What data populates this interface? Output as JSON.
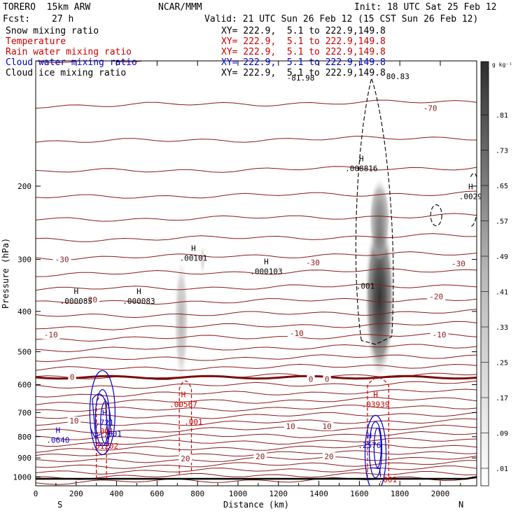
{
  "header": {
    "model": "TORERO  15km ARW",
    "org": "NCAR/MMM",
    "init": "Init: 18 UTC Sat 25 Feb 12",
    "fcst_label": "Fcst:",
    "fcst_value": "27 h",
    "valid": "Valid: 21 UTC Sun 26 Feb 12 (15 CST Sun 26 Feb 12)"
  },
  "legend": [
    {
      "name": "Snow mixing ratio",
      "xy": "XY= 222.9,  5.1 to 222.9,149.8",
      "color": "#000000"
    },
    {
      "name": "Temperature",
      "xy": "XY= 222.9,  5.1 to 222.9,149.8",
      "color": "#cc0000"
    },
    {
      "name": "Rain water mixing ratio",
      "xy": "XY= 222.9,  5.1 to 222.9,149.8",
      "color": "#cc0000"
    },
    {
      "name": "Cloud water mixing ratio",
      "xy": "XY= 222.9,  5.1 to 222.9,149.8",
      "color": "#0000cc"
    },
    {
      "name": "Cloud ice mixing ratio",
      "xy": "XY= 222.9,  5.1 to 222.9,149.8",
      "color": "#000000"
    }
  ],
  "chart_data": {
    "type": "cross-section",
    "xlabel": "Distance (km)",
    "ylabel": "Pressure (hPa)",
    "xlim": [
      0,
      2180
    ],
    "ylim": [
      1050,
      100
    ],
    "y_scale": "log",
    "x_ticks": [
      0,
      200,
      400,
      600,
      800,
      1000,
      1200,
      1400,
      1600,
      1800,
      2000
    ],
    "y_ticks": [
      200,
      300,
      400,
      500,
      600,
      700,
      800,
      900,
      1000
    ],
    "x_end_labels": {
      "left": "S",
      "right": "N"
    },
    "colorbar": {
      "unit": "g kg⁻¹",
      "levels": [
        ".01",
        ".09",
        ".17",
        ".25",
        ".33",
        ".41",
        ".49",
        ".57",
        ".65",
        ".73",
        ".81"
      ]
    },
    "temperature_labels": [
      {
        "text": "-70",
        "x": 1950,
        "p": 130
      },
      {
        "text": "-30",
        "x": 130,
        "p": 300
      },
      {
        "text": "-30",
        "x": 1370,
        "p": 305
      },
      {
        "text": "-30",
        "x": 2090,
        "p": 307
      },
      {
        "text": "-20",
        "x": 270,
        "p": 375
      },
      {
        "text": "-20",
        "x": 1980,
        "p": 368
      },
      {
        "text": "-10",
        "x": 75,
        "p": 455
      },
      {
        "text": "-10",
        "x": 1290,
        "p": 451
      },
      {
        "text": "-10",
        "x": 1995,
        "p": 455
      },
      {
        "text": "0",
        "x": 180,
        "p": 575
      },
      {
        "text": "0",
        "x": 1360,
        "p": 582
      },
      {
        "text": "0",
        "x": 1440,
        "p": 582
      },
      {
        "text": "10",
        "x": 190,
        "p": 733
      },
      {
        "text": "10",
        "x": 1260,
        "p": 755
      },
      {
        "text": "10",
        "x": 1440,
        "p": 755
      },
      {
        "text": "20",
        "x": 740,
        "p": 903
      },
      {
        "text": "20",
        "x": 1110,
        "p": 893
      },
      {
        "text": "20",
        "x": 1450,
        "p": 893
      }
    ],
    "extrema_labels": [
      {
        "mark": "H",
        "value": ".000085",
        "x": 200,
        "p": 375,
        "color": "#000000"
      },
      {
        "mark": "H",
        "value": ".000083",
        "x": 510,
        "p": 375,
        "color": "#000000"
      },
      {
        "mark": "H",
        "value": ".00101",
        "x": 780,
        "p": 295,
        "color": "#000000"
      },
      {
        "mark": "H",
        "value": ".000103",
        "x": 1140,
        "p": 318,
        "color": "#000000"
      },
      {
        "mark": "H",
        "value": ".008816",
        "x": 1610,
        "p": 180,
        "color": "#000000"
      },
      {
        "mark": "H",
        "value": ".0029",
        "x": 2150,
        "p": 210,
        "color": "#000000"
      },
      {
        "mark": "",
        "value": ".001",
        "x": 1630,
        "p": 345,
        "color": "#000000"
      },
      {
        "mark": "",
        "value": "80.83",
        "x": 1790,
        "p": 108,
        "color": "#000000"
      },
      {
        "mark": "",
        "value": "-81.98",
        "x": 1310,
        "p": 109,
        "color": "#000000"
      },
      {
        "mark": "H",
        "value": ".00567",
        "x": 730,
        "p": 663,
        "color": "#cc0000"
      },
      {
        "mark": "",
        "value": ".001",
        "x": 780,
        "p": 731,
        "color": "#cc0000"
      },
      {
        "mark": "H",
        "value": ".03939",
        "x": 1680,
        "p": 663,
        "color": "#cc0000"
      },
      {
        "mark": "",
        "value": ".001",
        "x": 340,
        "p": 770,
        "color": "#cc0000"
      },
      {
        "mark": "",
        "value": ".01202",
        "x": 340,
        "p": 835,
        "color": "#cc0000"
      },
      {
        "mark": "",
        "value": ".001",
        "x": 1740,
        "p": 1007,
        "color": "#cc0000"
      },
      {
        "mark": "H",
        "value": ".0640",
        "x": 110,
        "p": 808,
        "color": "#0000cc"
      },
      {
        "mark": "H",
        "value": ".721",
        "x": 340,
        "p": 734,
        "color": "#0000cc"
      },
      {
        "mark": "",
        "value": ".001",
        "x": 380,
        "p": 781,
        "color": "#0000cc"
      },
      {
        "mark": "H",
        "value": ".2576",
        "x": 1650,
        "p": 832,
        "color": "#0000cc"
      }
    ]
  }
}
